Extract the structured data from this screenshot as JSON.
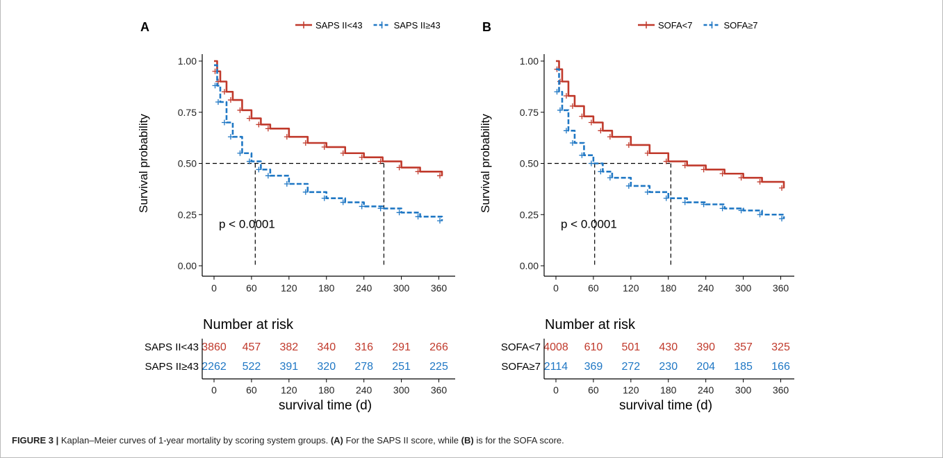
{
  "caption": {
    "label": "FIGURE 3 |",
    "text_1": " Kaplan–Meier curves of 1-year mortality by scoring system groups. ",
    "ref_a": "(A)",
    "text_2": " For the SAPS II score, while ",
    "ref_b": "(B)",
    "text_3": " is for the SOFA score."
  },
  "colors": {
    "group1": "#c0392b",
    "group2": "#1f77c4",
    "axis": "#000000"
  },
  "chart_data": [
    {
      "type": "line",
      "panel_label": "A",
      "ylabel": "Survival probability",
      "xlabel": "survival time (d)",
      "xlim": [
        0,
        365
      ],
      "ylim": [
        0,
        1
      ],
      "x_ticks": [
        "0",
        "60",
        "120",
        "180",
        "240",
        "300",
        "360"
      ],
      "y_ticks": [
        "0.00",
        "0.25",
        "0.50",
        "0.75",
        "1.00"
      ],
      "legend_position": "top",
      "annotation": "p < 0.0001",
      "median_survival": [
        {
          "x": 66,
          "y": 0.5
        },
        {
          "x": 272,
          "y": 0.5
        }
      ],
      "series": [
        {
          "name": "SAPS II<43",
          "color": "#c0392b",
          "x": [
            0,
            5,
            10,
            20,
            30,
            45,
            60,
            75,
            90,
            120,
            150,
            180,
            210,
            240,
            270,
            300,
            330,
            365
          ],
          "y": [
            1.0,
            0.95,
            0.9,
            0.85,
            0.81,
            0.76,
            0.72,
            0.69,
            0.67,
            0.63,
            0.6,
            0.58,
            0.55,
            0.53,
            0.51,
            0.48,
            0.46,
            0.44
          ]
        },
        {
          "name": "SAPS II≥43",
          "color": "#1f77c4",
          "x": [
            0,
            5,
            10,
            20,
            30,
            45,
            60,
            75,
            90,
            120,
            150,
            180,
            210,
            240,
            270,
            300,
            330,
            365
          ],
          "y": [
            0.98,
            0.88,
            0.8,
            0.7,
            0.63,
            0.55,
            0.51,
            0.47,
            0.44,
            0.4,
            0.36,
            0.33,
            0.31,
            0.29,
            0.28,
            0.26,
            0.24,
            0.22
          ]
        }
      ],
      "risk_table": {
        "title": "Number at risk",
        "rows": [
          {
            "label": "SAPS II<43",
            "values": [
              "3860",
              "457",
              "382",
              "340",
              "316",
              "291",
              "266"
            ]
          },
          {
            "label": "SAPS II≥43",
            "values": [
              "2262",
              "522",
              "391",
              "320",
              "278",
              "251",
              "225"
            ]
          }
        ]
      }
    },
    {
      "type": "line",
      "panel_label": "B",
      "ylabel": "Survival probability",
      "xlabel": "survival time (d)",
      "xlim": [
        0,
        365
      ],
      "ylim": [
        0,
        1
      ],
      "x_ticks": [
        "0",
        "60",
        "120",
        "180",
        "240",
        "300",
        "360"
      ],
      "y_ticks": [
        "0.00",
        "0.25",
        "0.50",
        "0.75",
        "1.00"
      ],
      "legend_position": "top",
      "annotation": "p < 0.0001",
      "median_survival": [
        {
          "x": 62,
          "y": 0.5
        },
        {
          "x": 184,
          "y": 0.5
        }
      ],
      "series": [
        {
          "name": "SOFA<7",
          "color": "#c0392b",
          "x": [
            0,
            5,
            10,
            20,
            30,
            45,
            60,
            75,
            90,
            120,
            150,
            180,
            210,
            240,
            270,
            300,
            330,
            365
          ],
          "y": [
            1.0,
            0.96,
            0.9,
            0.83,
            0.78,
            0.73,
            0.7,
            0.66,
            0.63,
            0.59,
            0.55,
            0.51,
            0.49,
            0.47,
            0.45,
            0.43,
            0.41,
            0.38
          ]
        },
        {
          "name": "SOFA≥7",
          "color": "#1f77c4",
          "x": [
            0,
            5,
            10,
            20,
            30,
            45,
            60,
            75,
            90,
            120,
            150,
            180,
            210,
            240,
            270,
            300,
            330,
            365
          ],
          "y": [
            0.96,
            0.85,
            0.76,
            0.66,
            0.6,
            0.54,
            0.5,
            0.46,
            0.43,
            0.39,
            0.36,
            0.33,
            0.31,
            0.3,
            0.28,
            0.27,
            0.25,
            0.23
          ]
        }
      ],
      "risk_table": {
        "title": "Number at risk",
        "rows": [
          {
            "label": "SOFA<7",
            "values": [
              "4008",
              "610",
              "501",
              "430",
              "390",
              "357",
              "325"
            ]
          },
          {
            "label": "SOFA≥7",
            "values": [
              "2114",
              "369",
              "272",
              "230",
              "204",
              "185",
              "166"
            ]
          }
        ]
      }
    }
  ]
}
